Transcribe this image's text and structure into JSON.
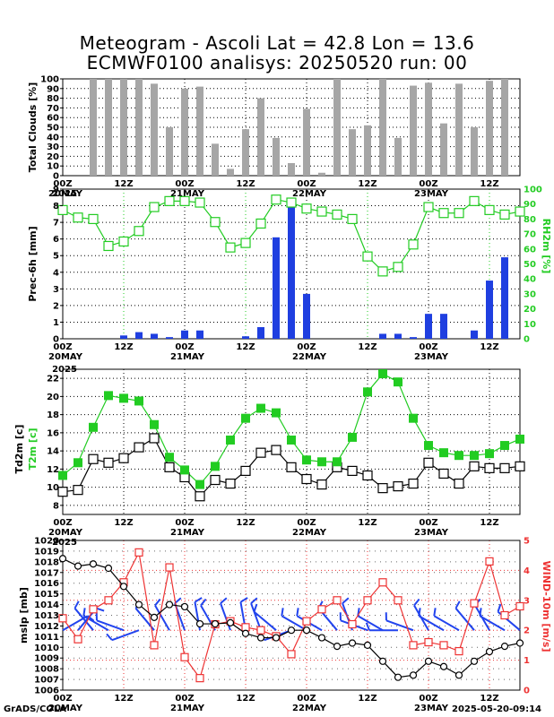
{
  "title_line1": "Meteogram - Ascoli Lat = 42.8 Lon = 13.6",
  "title_line2": "ECMWF0100 analisys: 20250520 run: 00",
  "footer_left": "GrADS/COLA",
  "footer_right": "2025-05-20-09:14",
  "colors": {
    "cloud_bar": "#a6a6a6",
    "precip_bar": "#1f3fe0",
    "rh": "#22cc22",
    "t2m": "#22cc22",
    "td2m": "#000000",
    "mslp": "#000000",
    "wind": "#ee3333",
    "barb": "#2244ee",
    "grid": "#000000",
    "grid_red": "#ee3333"
  },
  "x_axis": {
    "ticks": [
      "00Z",
      "12Z",
      "00Z",
      "12Z",
      "00Z",
      "12Z",
      "00Z",
      "12Z"
    ],
    "dates": [
      "20MAY",
      "21MAY",
      "22MAY",
      "23MAY"
    ],
    "year": "2025"
  },
  "chart_data": [
    {
      "type": "bar",
      "id": "clouds",
      "ylabel": "Total Clouds [%]",
      "ylim": [
        0,
        100
      ],
      "yticks": [
        0,
        10,
        20,
        30,
        40,
        50,
        60,
        70,
        80,
        90,
        100
      ],
      "x_hours": [
        6,
        9,
        12,
        15,
        18,
        21,
        24,
        27,
        30,
        33,
        36,
        39,
        42,
        45,
        48,
        51,
        54,
        57,
        60,
        63,
        66,
        69,
        72,
        75,
        78,
        81,
        84,
        87
      ],
      "values": [
        100,
        100,
        100,
        100,
        95,
        50,
        90,
        92,
        33,
        7,
        48,
        80,
        39,
        13,
        69,
        3,
        100,
        48,
        52,
        100,
        39,
        93,
        96,
        54,
        95,
        50,
        98,
        100
      ],
      "grid": true
    },
    {
      "type": "bar+line",
      "id": "precip_rh",
      "ylabel": "Prec-6h [mm]",
      "y2label": "RH2m [%]",
      "ylim": [
        0,
        9
      ],
      "y2lim": [
        0,
        100
      ],
      "yticks": [
        0,
        1,
        2,
        3,
        4,
        5,
        6,
        7,
        8,
        9
      ],
      "y2ticks": [
        0,
        10,
        20,
        30,
        40,
        50,
        60,
        70,
        80,
        90,
        100
      ],
      "precip": {
        "x_hours": [
          6,
          9,
          12,
          15,
          18,
          21,
          24,
          27,
          30,
          33,
          36,
          39,
          42,
          45,
          48,
          51,
          54,
          57,
          60,
          63,
          66,
          69,
          72,
          75,
          78,
          81,
          84,
          87
        ],
        "values": [
          0,
          0,
          0.2,
          0.4,
          0.3,
          0.1,
          0.5,
          0.5,
          0,
          0,
          0.15,
          0.7,
          6.1,
          8.4,
          2.7,
          0,
          0,
          0,
          0,
          0.3,
          0.3,
          0.1,
          1.5,
          1.5,
          0,
          0.5,
          3.5,
          4.9
        ]
      },
      "rh": {
        "x_hours": [
          0,
          3,
          6,
          9,
          12,
          15,
          18,
          21,
          24,
          27,
          30,
          33,
          36,
          39,
          42,
          45,
          48,
          51,
          54,
          57,
          60,
          63,
          66,
          69,
          72,
          75,
          78,
          81,
          84,
          87,
          90
        ],
        "values": [
          86,
          81,
          80,
          62,
          65,
          72,
          88,
          92,
          92,
          91,
          78,
          61,
          64,
          77,
          93,
          91,
          87,
          85,
          83,
          80,
          55,
          45,
          48,
          63,
          88,
          84,
          84,
          92,
          86,
          83,
          85
        ]
      },
      "grid": true
    },
    {
      "type": "line",
      "id": "temps",
      "ylabel": "Td2m [c]",
      "ylabel2": "T2m [c]",
      "ylim": [
        7,
        23
      ],
      "yticks": [
        8,
        10,
        12,
        14,
        16,
        18,
        20,
        22
      ],
      "series": [
        {
          "name": "T2m",
          "x_hours": [
            0,
            3,
            6,
            9,
            12,
            15,
            18,
            21,
            24,
            27,
            30,
            33,
            36,
            39,
            42,
            45,
            48,
            51,
            54,
            57,
            60,
            63,
            66,
            69,
            72,
            75,
            78,
            81,
            84,
            87,
            90
          ],
          "values": [
            11.3,
            12.7,
            16.6,
            20.1,
            19.8,
            19.5,
            16.9,
            13.3,
            11.9,
            10.3,
            12.3,
            15.2,
            17.6,
            18.7,
            18.2,
            15.2,
            13.0,
            12.8,
            12.8,
            15.5,
            20.5,
            22.5,
            21.6,
            17.6,
            14.6,
            13.8,
            13.5,
            13.5,
            13.7,
            14.6,
            15.3
          ]
        },
        {
          "name": "Td2m",
          "x_hours": [
            0,
            3,
            6,
            9,
            12,
            15,
            18,
            21,
            24,
            27,
            30,
            33,
            36,
            39,
            42,
            45,
            48,
            51,
            54,
            57,
            60,
            63,
            66,
            69,
            72,
            75,
            78,
            81,
            84,
            87,
            90
          ],
          "values": [
            9.5,
            9.7,
            13.1,
            12.7,
            13.2,
            14.4,
            15.4,
            12.2,
            11.1,
            9.0,
            10.8,
            10.4,
            11.8,
            13.8,
            14.1,
            12.2,
            10.9,
            10.3,
            12.2,
            11.8,
            11.3,
            9.9,
            10.1,
            10.4,
            12.7,
            11.5,
            10.4,
            12.3,
            12.1,
            12.1,
            12.3
          ]
        }
      ],
      "grid": true
    },
    {
      "type": "line+barbs",
      "id": "mslp_wind",
      "ylabel": "mslp [mb]",
      "y2label": "WIND-10m [m/s]",
      "ylim": [
        1006,
        1020
      ],
      "yticks": [
        1006,
        1007,
        1008,
        1009,
        1010,
        1011,
        1012,
        1013,
        1014,
        1015,
        1016,
        1017,
        1018,
        1019,
        1020
      ],
      "y2lim": [
        0,
        5
      ],
      "y2ticks": [
        0,
        1,
        2,
        3,
        4,
        5
      ],
      "mslp": {
        "x_hours": [
          0,
          3,
          6,
          9,
          12,
          15,
          18,
          21,
          24,
          27,
          30,
          33,
          36,
          39,
          42,
          45,
          48,
          51,
          54,
          57,
          60,
          63,
          66,
          69,
          72,
          75,
          78,
          81,
          84,
          87,
          90
        ],
        "values": [
          1018.3,
          1017.6,
          1017.8,
          1017.4,
          1015.7,
          1014.0,
          1012.8,
          1014.0,
          1013.8,
          1012.2,
          1012.2,
          1012.3,
          1011.3,
          1010.9,
          1010.9,
          1011.6,
          1011.6,
          1010.9,
          1010.1,
          1010.4,
          1010.2,
          1008.7,
          1007.2,
          1007.4,
          1008.7,
          1008.2,
          1007.4,
          1008.7,
          1009.6,
          1010.1,
          1010.4
        ]
      },
      "wind": {
        "x_hours": [
          0,
          3,
          6,
          9,
          12,
          15,
          18,
          21,
          24,
          27,
          30,
          33,
          36,
          39,
          42,
          45,
          48,
          51,
          54,
          57,
          60,
          63,
          66,
          69,
          72,
          75,
          78,
          81,
          84,
          87,
          90
        ],
        "values": [
          2.4,
          1.7,
          2.7,
          3.0,
          3.6,
          4.6,
          1.5,
          4.1,
          1.1,
          0.4,
          2.2,
          2.3,
          2.1,
          2.0,
          1.8,
          1.2,
          2.3,
          2.7,
          3.0,
          2.2,
          3.0,
          3.6,
          3.0,
          1.5,
          1.6,
          1.5,
          1.3,
          2.9,
          4.3,
          2.5,
          2.8
        ]
      },
      "barbs": {
        "x_hours": [
          0,
          3,
          6,
          9,
          12,
          15,
          18,
          21,
          24,
          27,
          30,
          33,
          36,
          39,
          42,
          45,
          48,
          51,
          54,
          57,
          60,
          63,
          66,
          69,
          72,
          75,
          78,
          81,
          84,
          87,
          90
        ],
        "angles": [
          60,
          40,
          -40,
          -60,
          -70,
          -110,
          -40,
          -30,
          -20,
          -10,
          -30,
          -20,
          -10,
          -20,
          -50,
          -110,
          -60,
          -60,
          -40,
          -20,
          -70,
          -60,
          -90,
          -70,
          -30,
          -60,
          -60,
          -40,
          -30,
          -60,
          -50
        ]
      },
      "grid": true
    }
  ]
}
